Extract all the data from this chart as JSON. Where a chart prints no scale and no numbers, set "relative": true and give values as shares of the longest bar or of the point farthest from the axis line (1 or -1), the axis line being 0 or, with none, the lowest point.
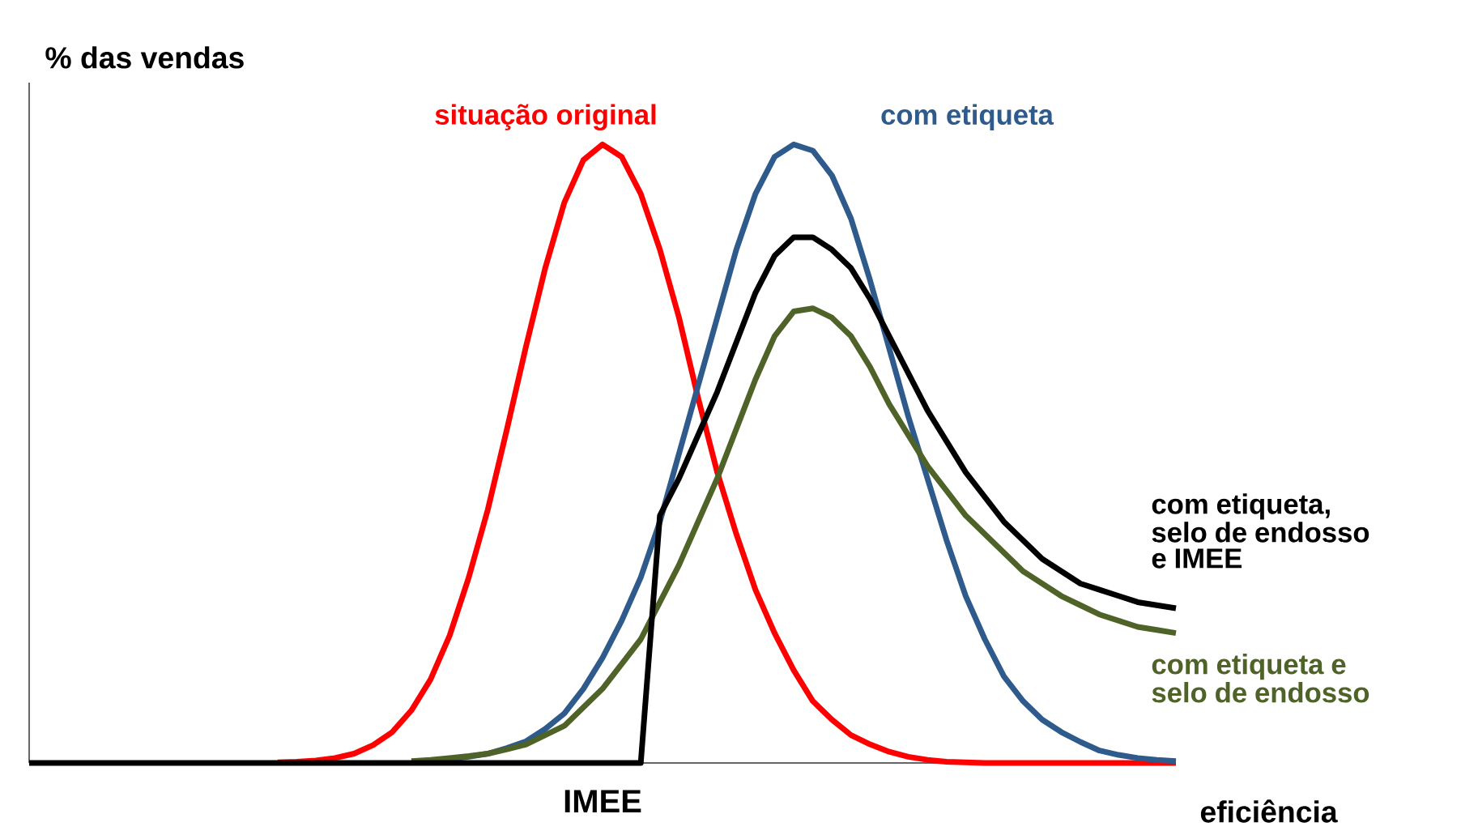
{
  "chart_data": {
    "type": "line",
    "relative": true,
    "xlabel": "eficiência",
    "ylabel": "% das vendas",
    "annotations": [
      "IMEE"
    ],
    "categories": [
      null,
      null,
      null,
      null,
      null,
      null,
      null,
      null,
      null,
      null,
      null,
      null,
      null,
      null,
      null,
      null,
      null,
      null,
      null,
      null,
      null,
      null,
      null,
      null,
      null,
      null,
      null,
      null,
      null,
      null,
      null,
      null,
      null,
      null,
      null,
      null,
      null,
      null,
      null,
      null,
      null,
      null,
      null,
      null,
      null,
      null,
      null,
      null,
      null,
      null,
      null,
      null,
      null,
      null,
      null,
      null,
      null,
      null,
      null,
      null,
      null
    ],
    "series": [
      {
        "name": "situação original",
        "color": "#ff0000",
        "values": [
          null,
          null,
          null,
          null,
          null,
          null,
          null,
          null,
          null,
          null,
          null,
          null,
          null,
          0.001,
          0.002,
          0.004,
          0.008,
          0.015,
          0.029,
          0.05,
          0.085,
          0.135,
          0.206,
          0.3,
          0.41,
          0.54,
          0.674,
          0.8,
          0.906,
          0.975,
          1,
          0.98,
          0.92,
          0.83,
          0.72,
          0.59,
          0.47,
          0.37,
          0.28,
          0.21,
          0.15,
          0.1,
          0.07,
          0.045,
          0.03,
          0.018,
          0.01,
          0.005,
          0.002,
          0.001,
          0,
          0,
          0,
          0,
          0,
          0,
          0,
          0,
          0,
          0,
          0
        ]
      },
      {
        "name": "com etiqueta",
        "color": "#2e5a8c",
        "values": [
          null,
          null,
          null,
          null,
          null,
          null,
          null,
          null,
          null,
          null,
          null,
          null,
          null,
          null,
          null,
          null,
          null,
          null,
          null,
          null,
          null,
          null,
          0.006,
          0.01,
          0.015,
          0.024,
          0.035,
          0.055,
          0.08,
          0.12,
          0.17,
          0.23,
          0.3,
          0.39,
          0.5,
          0.61,
          0.72,
          0.83,
          0.92,
          0.98,
          1,
          0.99,
          0.95,
          0.88,
          0.78,
          0.67,
          0.56,
          0.46,
          0.36,
          0.27,
          0.2,
          0.14,
          0.1,
          0.07,
          0.05,
          0.034,
          0.02,
          0.013,
          0.008,
          0.005,
          0.003
        ]
      },
      {
        "name": "com etiqueta e selo de endosso",
        "color": "#4f6228",
        "values": [
          null,
          null,
          null,
          null,
          null,
          null,
          null,
          null,
          null,
          null,
          null,
          null,
          null,
          null,
          null,
          null,
          null,
          null,
          null,
          null,
          0.003,
          0.005,
          0.008,
          0.011,
          0.015,
          0.022,
          0.03,
          0.045,
          0.06,
          0.09,
          0.12,
          0.16,
          0.2,
          0.26,
          0.32,
          0.39,
          0.46,
          0.54,
          0.62,
          0.69,
          0.73,
          0.735,
          0.72,
          0.69,
          0.64,
          0.58,
          0.53,
          0.48,
          0.44,
          0.4,
          0.37,
          0.34,
          0.31,
          0.29,
          0.27,
          0.255,
          0.24,
          0.23,
          0.22,
          0.215,
          0.21
        ]
      },
      {
        "name": "com etiqueta, selo de endosso e IMEE",
        "color": "#000000",
        "values": [
          0,
          0,
          0,
          0,
          0,
          0,
          0,
          0,
          0,
          0,
          0,
          0,
          0,
          0,
          0,
          0,
          0,
          0,
          0,
          0,
          0,
          0,
          0,
          0,
          0,
          0,
          0,
          0,
          0,
          0,
          0,
          0,
          0,
          0.4,
          0.46,
          0.53,
          0.6,
          0.68,
          0.76,
          0.82,
          0.85,
          0.85,
          0.83,
          0.8,
          0.75,
          0.69,
          0.63,
          0.57,
          0.52,
          0.47,
          0.43,
          0.39,
          0.36,
          0.33,
          0.31,
          0.29,
          0.28,
          0.27,
          0.26,
          0.255,
          0.25
        ]
      }
    ]
  }
}
